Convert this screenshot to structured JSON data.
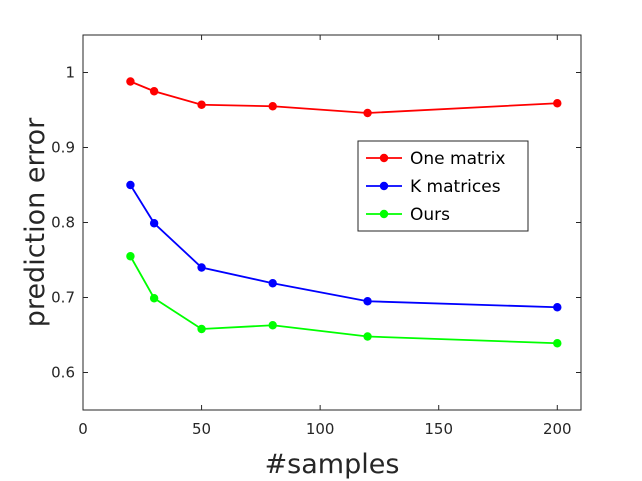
{
  "chart_data": {
    "type": "line",
    "xlabel": "#samples",
    "ylabel": "prediction error",
    "xlim": [
      0,
      210
    ],
    "ylim": [
      0.55,
      1.05
    ],
    "xticks": [
      0,
      50,
      100,
      150,
      200
    ],
    "yticks": [
      0.6,
      0.7,
      0.8,
      0.9,
      1
    ],
    "ytick_labels": [
      "0.6",
      "0.7",
      "0.8",
      "0.9",
      "1"
    ],
    "grid": false,
    "legend_position": "right",
    "x": [
      20,
      30,
      50,
      80,
      120,
      200
    ],
    "series": [
      {
        "name": "One matrix",
        "color": "#ff0000",
        "values": [
          0.988,
          0.975,
          0.957,
          0.955,
          0.946,
          0.959
        ]
      },
      {
        "name": "K matrices",
        "color": "#0000ff",
        "values": [
          0.85,
          0.799,
          0.74,
          0.719,
          0.695,
          0.687
        ]
      },
      {
        "name": "Ours",
        "color": "#00ff00",
        "values": [
          0.755,
          0.699,
          0.658,
          0.663,
          0.648,
          0.639
        ]
      }
    ]
  }
}
